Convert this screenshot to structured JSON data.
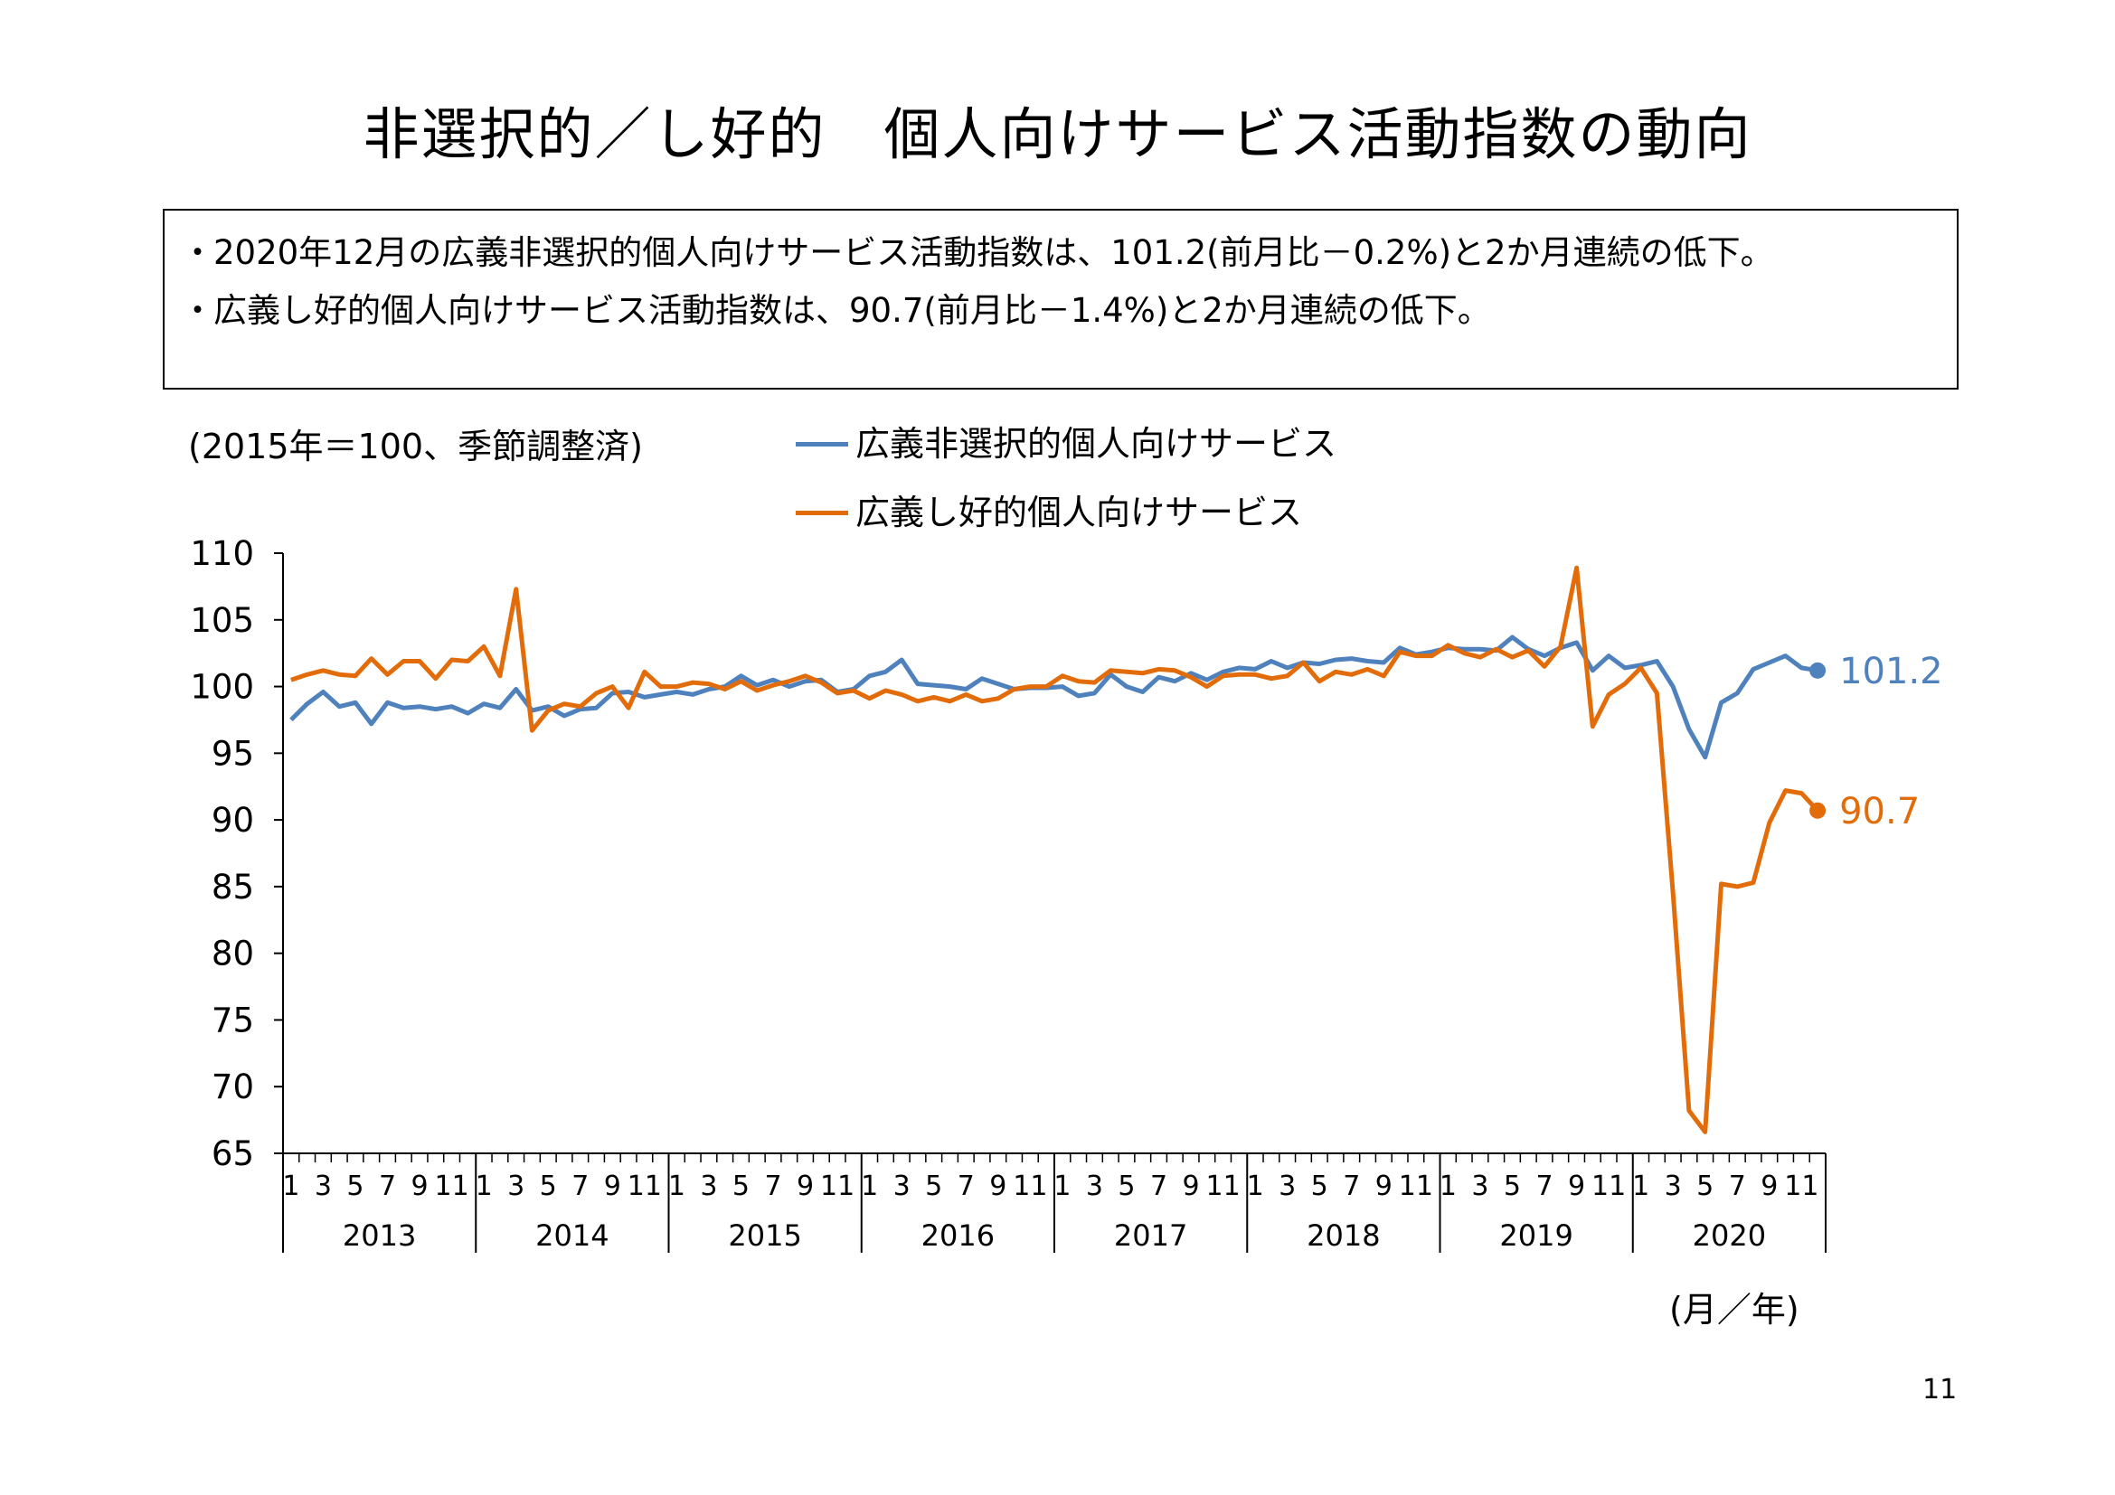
{
  "page": {
    "title": "非選択的／し好的　個人向けサービス活動指数の動向",
    "summary": [
      {
        "bullet": "・",
        "text": "2020年12月の広義非選択的個人向けサービス活動指数は、101.2(前月比－0.2%)と2か月連続の低下。"
      },
      {
        "bullet": "・",
        "text": "広義し好的個人向けサービス活動指数は、90.7(前月比－1.4%)と2か月連続の低下。"
      }
    ],
    "unit_note": "(2015年＝100、季節調整済)",
    "x_unit": "(月／年)",
    "page_number": "11"
  },
  "chart_data": {
    "type": "line",
    "ylim": [
      65,
      110
    ],
    "yticks": [
      "65",
      "70",
      "75",
      "80",
      "85",
      "90",
      "95",
      "100",
      "105",
      "110"
    ],
    "month_tick_labels": [
      "1",
      "3",
      "5",
      "7",
      "9",
      "11"
    ],
    "years": [
      "2013",
      "2014",
      "2015",
      "2016",
      "2017",
      "2018",
      "2019",
      "2020"
    ],
    "grid": false,
    "legend_position": "top-center",
    "series": [
      {
        "name": "広義非選択的個人向けサービス",
        "color": "#4f81bd",
        "end_label": "101.2",
        "values": [
          97.5,
          98.7,
          99.6,
          98.5,
          98.8,
          97.2,
          98.8,
          98.4,
          98.5,
          98.3,
          98.5,
          98.0,
          98.7,
          98.4,
          99.8,
          98.2,
          98.5,
          97.8,
          98.3,
          98.4,
          99.5,
          99.6,
          99.2,
          99.4,
          99.6,
          99.4,
          99.8,
          100.0,
          100.8,
          100.1,
          100.5,
          100.0,
          100.4,
          100.5,
          99.6,
          99.8,
          100.8,
          101.1,
          102.0,
          100.2,
          100.1,
          100.0,
          99.8,
          100.6,
          100.2,
          99.8,
          99.9,
          99.9,
          100.0,
          99.3,
          99.5,
          100.9,
          100.0,
          99.6,
          100.7,
          100.4,
          101.0,
          100.5,
          101.1,
          101.4,
          101.3,
          101.9,
          101.4,
          101.8,
          101.7,
          102.0,
          102.1,
          101.9,
          101.8,
          102.9,
          102.4,
          102.6,
          102.9,
          102.8,
          102.8,
          102.7,
          103.7,
          102.8,
          102.3,
          102.9,
          103.3,
          101.2,
          102.3,
          101.4,
          101.6,
          101.9,
          100.0,
          96.8,
          94.7,
          98.8,
          99.5,
          101.3,
          101.8,
          102.3,
          101.4,
          101.2
        ]
      },
      {
        "name": "広義し好的個人向けサービス",
        "color": "#e36c0a",
        "end_label": "90.7",
        "values": [
          100.5,
          100.9,
          101.2,
          100.9,
          100.8,
          102.1,
          100.9,
          101.9,
          101.9,
          100.6,
          102.0,
          101.9,
          103.0,
          100.8,
          107.3,
          96.7,
          98.2,
          98.7,
          98.5,
          99.5,
          100.0,
          98.4,
          101.1,
          100.0,
          100.0,
          100.3,
          100.2,
          99.8,
          100.4,
          99.7,
          100.1,
          100.4,
          100.8,
          100.3,
          99.5,
          99.7,
          99.1,
          99.7,
          99.4,
          98.9,
          99.2,
          98.9,
          99.4,
          98.9,
          99.1,
          99.8,
          100.0,
          100.0,
          100.8,
          100.4,
          100.3,
          101.2,
          101.1,
          101.0,
          101.3,
          101.2,
          100.7,
          100.0,
          100.8,
          100.9,
          100.9,
          100.6,
          100.8,
          101.8,
          100.4,
          101.1,
          100.9,
          101.3,
          100.8,
          102.6,
          102.3,
          102.3,
          103.1,
          102.5,
          102.2,
          102.8,
          102.2,
          102.7,
          101.5,
          103.0,
          108.9,
          97.0,
          99.4,
          100.2,
          101.4,
          99.5,
          84.5,
          68.2,
          66.6,
          85.2,
          85.0,
          85.3,
          89.8,
          92.2,
          92.0,
          90.7
        ]
      }
    ]
  }
}
